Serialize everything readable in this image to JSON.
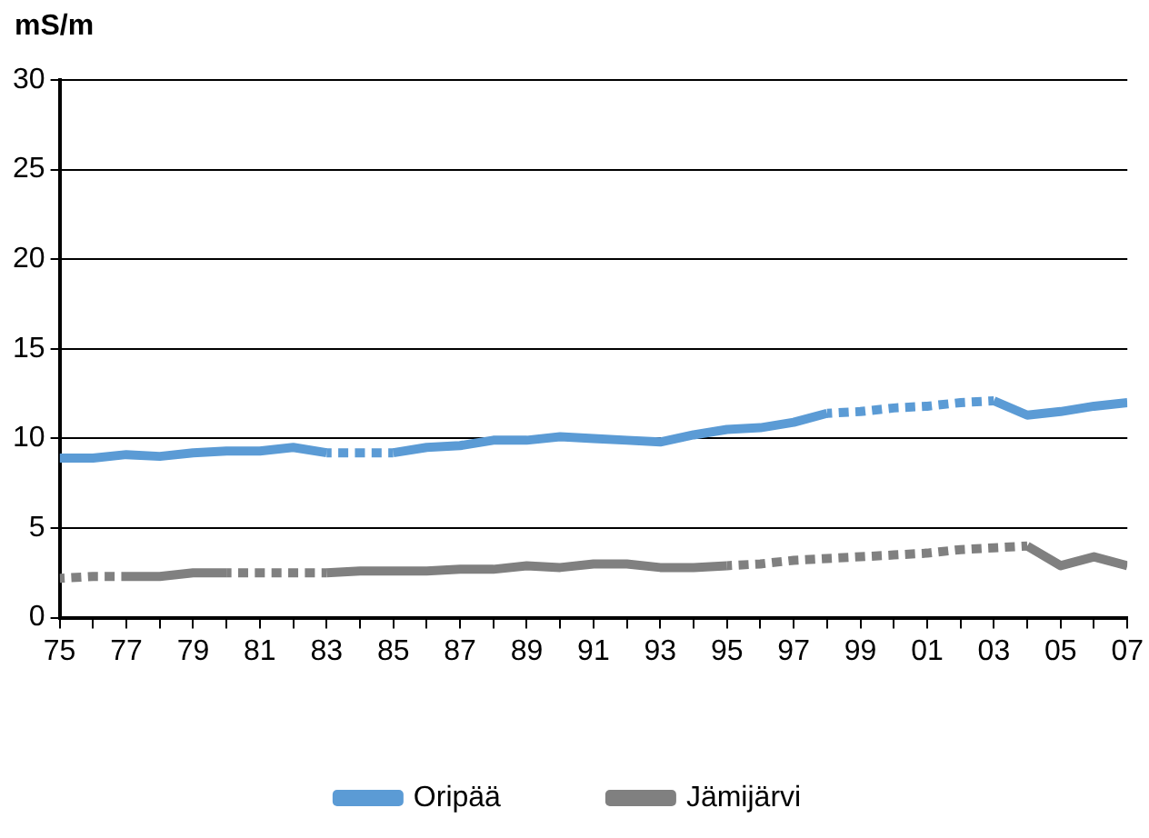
{
  "chart_data": {
    "type": "line",
    "ylabel": "mS/m",
    "series": [
      {
        "name": "Oripää",
        "color": "#5b9bd5",
        "line_style": "solid",
        "x": [
          1975,
          1976,
          1977,
          1978,
          1979,
          1980,
          1981,
          1982,
          1983
        ],
        "values": [
          8.9,
          8.9,
          9.1,
          9.0,
          9.2,
          9.3,
          9.3,
          9.5,
          9.2
        ]
      },
      {
        "color": "#5b9bd5",
        "line_style": "dotted",
        "x": [
          1983,
          1984,
          1985
        ],
        "values": [
          9.2,
          9.2,
          9.2
        ]
      },
      {
        "color": "#5b9bd5",
        "line_style": "solid",
        "x": [
          1985,
          1986,
          1987,
          1988,
          1989,
          1990,
          1991,
          1992,
          1993,
          1994,
          1995,
          1996,
          1997,
          1998
        ],
        "values": [
          9.2,
          9.5,
          9.6,
          9.9,
          9.9,
          10.1,
          10.0,
          9.9,
          9.8,
          10.2,
          10.5,
          10.6,
          10.9,
          11.4
        ]
      },
      {
        "color": "#5b9bd5",
        "line_style": "dotted",
        "x": [
          1998,
          1999,
          2000,
          2001,
          2002,
          2003
        ],
        "values": [
          11.4,
          11.5,
          11.7,
          11.8,
          12.0,
          12.1
        ]
      },
      {
        "color": "#5b9bd5",
        "line_style": "solid",
        "x": [
          2003,
          2004,
          2005,
          2006,
          2007
        ],
        "values": [
          12.1,
          11.3,
          11.5,
          11.8,
          12.0
        ]
      },
      {
        "name": "Jämijärvi",
        "color": "#808080",
        "line_style": "solid",
        "x": [
          1977,
          1978,
          1979,
          1980
        ],
        "values": [
          2.3,
          2.3,
          2.5,
          2.5
        ]
      },
      {
        "color": "#808080",
        "line_style": "dotted",
        "x": [
          1975,
          1976,
          1977
        ],
        "values": [
          2.2,
          2.3,
          2.3
        ]
      },
      {
        "color": "#808080",
        "line_style": "dotted",
        "x": [
          1980,
          1981,
          1982,
          1983
        ],
        "values": [
          2.5,
          2.5,
          2.5,
          2.5
        ]
      },
      {
        "color": "#808080",
        "line_style": "solid",
        "x": [
          1983,
          1984,
          1985,
          1986,
          1987,
          1988,
          1989,
          1990,
          1991,
          1992,
          1993,
          1994,
          1995
        ],
        "values": [
          2.5,
          2.6,
          2.6,
          2.6,
          2.7,
          2.7,
          2.9,
          2.8,
          3.0,
          3.0,
          2.8,
          2.8,
          2.9
        ]
      },
      {
        "color": "#808080",
        "line_style": "dotted",
        "x": [
          1995,
          1996,
          1997,
          1998,
          1999,
          2000,
          2001,
          2002,
          2003,
          2004
        ],
        "values": [
          2.9,
          3.0,
          3.2,
          3.3,
          3.4,
          3.5,
          3.6,
          3.8,
          3.9,
          4.0
        ]
      },
      {
        "color": "#808080",
        "line_style": "solid",
        "x": [
          2004,
          2005,
          2006,
          2007
        ],
        "values": [
          4.0,
          2.9,
          3.4,
          2.9
        ]
      }
    ],
    "xlim": [
      1975,
      2007
    ],
    "xticks": [
      {
        "value": 1975,
        "label": "75"
      },
      {
        "value": 1976,
        "label": null
      },
      {
        "value": 1977,
        "label": "77"
      },
      {
        "value": 1978,
        "label": null
      },
      {
        "value": 1979,
        "label": "79"
      },
      {
        "value": 1980,
        "label": null
      },
      {
        "value": 1981,
        "label": "81"
      },
      {
        "value": 1982,
        "label": null
      },
      {
        "value": 1983,
        "label": "83"
      },
      {
        "value": 1984,
        "label": null
      },
      {
        "value": 1985,
        "label": "85"
      },
      {
        "value": 1986,
        "label": null
      },
      {
        "value": 1987,
        "label": "87"
      },
      {
        "value": 1988,
        "label": null
      },
      {
        "value": 1989,
        "label": "89"
      },
      {
        "value": 1990,
        "label": null
      },
      {
        "value": 1991,
        "label": "91"
      },
      {
        "value": 1992,
        "label": null
      },
      {
        "value": 1993,
        "label": "93"
      },
      {
        "value": 1994,
        "label": null
      },
      {
        "value": 1995,
        "label": "95"
      },
      {
        "value": 1996,
        "label": null
      },
      {
        "value": 1997,
        "label": "97"
      },
      {
        "value": 1998,
        "label": null
      },
      {
        "value": 1999,
        "label": "99"
      },
      {
        "value": 2000,
        "label": null
      },
      {
        "value": 2001,
        "label": "01"
      },
      {
        "value": 2002,
        "label": null
      },
      {
        "value": 2003,
        "label": "03"
      },
      {
        "value": 2004,
        "label": null
      },
      {
        "value": 2005,
        "label": "05"
      },
      {
        "value": 2006,
        "label": null
      },
      {
        "value": 2007,
        "label": "07"
      }
    ],
    "ylim": [
      0,
      30
    ],
    "yticks": [
      0,
      5,
      10,
      15,
      20,
      25,
      30
    ],
    "grid": "y",
    "legend": "bottom",
    "marker": "none"
  }
}
